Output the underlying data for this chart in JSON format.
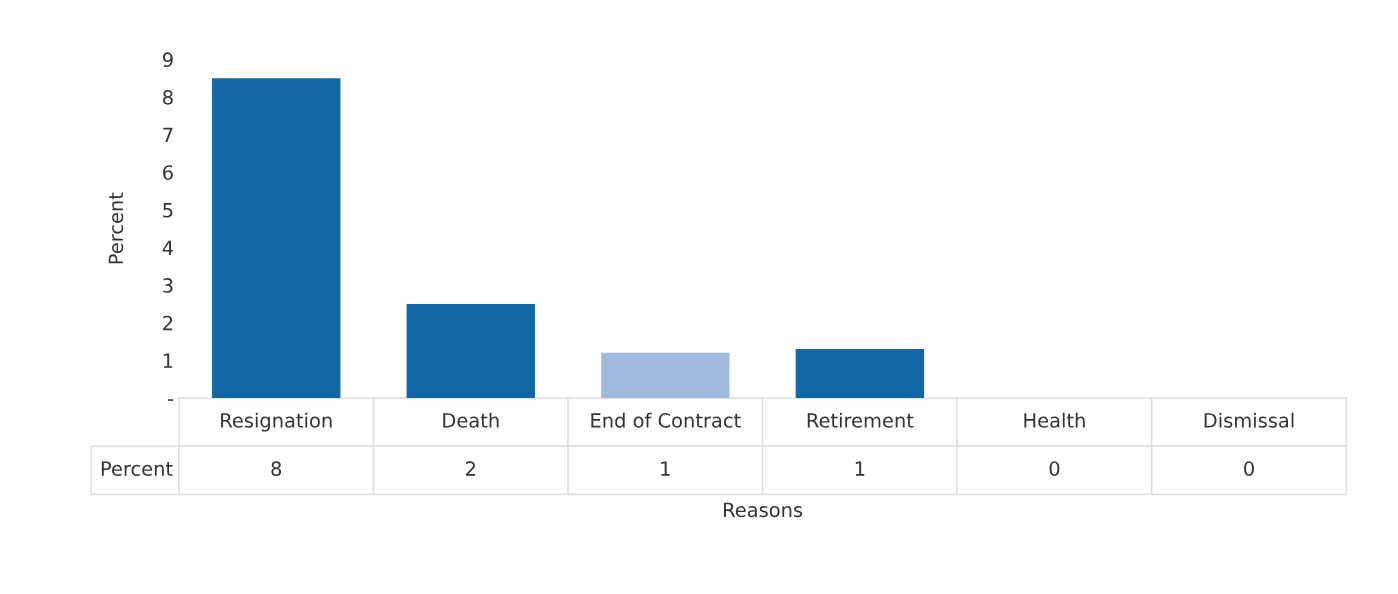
{
  "chart_data": {
    "type": "bar",
    "xlabel": "Reasons",
    "ylabel": "Percent",
    "categories": [
      "Resignation",
      "Death",
      "End of Contract",
      "Retirement",
      "Health",
      "Dismissal"
    ],
    "series": [
      {
        "name": "Percent",
        "colors": [
          "#1268a6",
          "#1268a6",
          "#a0b9de",
          "#1268a6",
          null,
          null
        ],
        "values": [
          8.5,
          2.5,
          1.2,
          1.3,
          0,
          0
        ],
        "value_labels": [
          "8",
          "2",
          "1",
          "1",
          "0",
          "0"
        ]
      }
    ],
    "ylim": [
      0,
      9
    ],
    "yticks": [
      {
        "value": 0,
        "label": "-"
      },
      1,
      2,
      3,
      4,
      5,
      6,
      7,
      8,
      9
    ],
    "grid": false
  }
}
